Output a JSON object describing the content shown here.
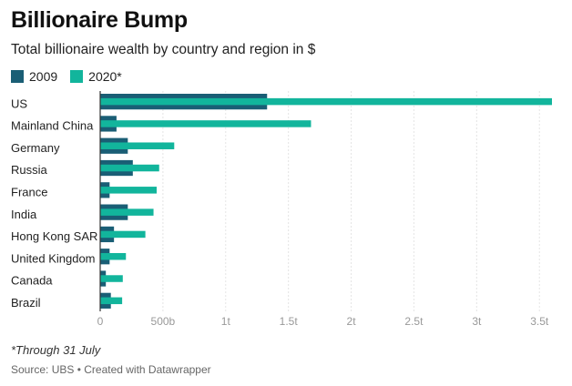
{
  "chart_data": {
    "type": "bar",
    "orientation": "horizontal",
    "title": "Billionaire Bump",
    "subtitle": "Total billionaire wealth by country and region in $",
    "categories": [
      "US",
      "Mainland China",
      "Germany",
      "Russia",
      "France",
      "India",
      "Hong Kong SAR",
      "United Kingdom",
      "Canada",
      "Brazil"
    ],
    "series": [
      {
        "name": "2009",
        "color": "#1a5e75",
        "values": [
          1330,
          130,
          220,
          260,
          75,
          220,
          110,
          75,
          45,
          85
        ]
      },
      {
        "name": "2020*",
        "color": "#12b59c",
        "values": [
          3600,
          1680,
          590,
          470,
          450,
          425,
          360,
          205,
          180,
          175
        ]
      }
    ],
    "xlim": [
      0,
      3600
    ],
    "xticks": [
      {
        "value": 0,
        "label": "0"
      },
      {
        "value": 500,
        "label": "500b"
      },
      {
        "value": 1000,
        "label": "1t"
      },
      {
        "value": 1500,
        "label": "1.5t"
      },
      {
        "value": 2000,
        "label": "2t"
      },
      {
        "value": 2500,
        "label": "2.5t"
      },
      {
        "value": 3000,
        "label": "3t"
      },
      {
        "value": 3500,
        "label": "3.5t"
      }
    ],
    "grid": true,
    "legend": "top-left"
  },
  "footer": {
    "note": "*Through 31 July",
    "source": "Source: UBS • Created with Datawrapper"
  }
}
